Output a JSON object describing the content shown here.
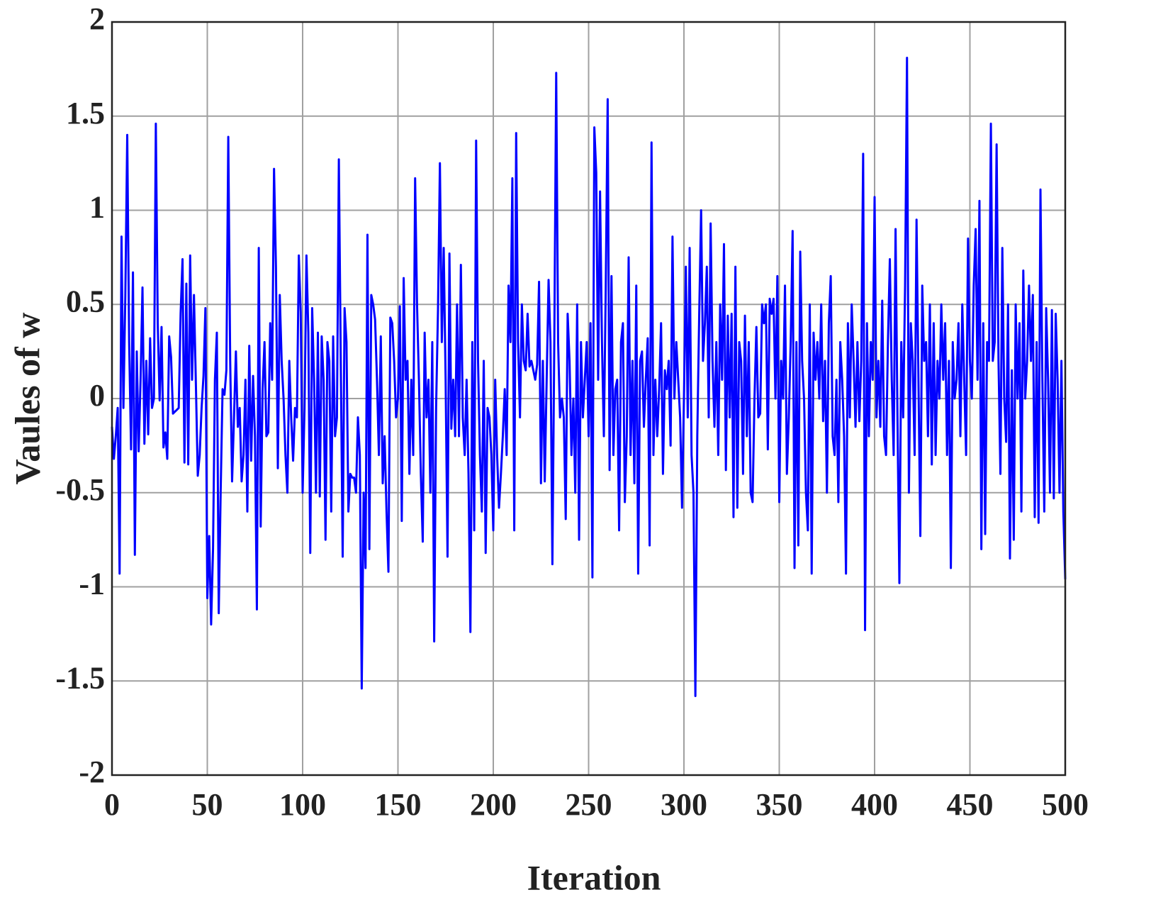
{
  "chart_data": {
    "type": "line",
    "xlabel": "Iteration",
    "ylabel": "Vaules of w",
    "xlim": [
      0,
      500
    ],
    "xticks": [
      0,
      50,
      100,
      150,
      200,
      250,
      300,
      350,
      400,
      450,
      500
    ],
    "ylim": [
      -2,
      2
    ],
    "yticks": [
      -2,
      -1.5,
      -1,
      -0.5,
      0,
      0.5,
      1,
      1.5,
      2
    ],
    "grid": true,
    "color": "#0000ff",
    "x": [
      0,
      1,
      2,
      3,
      4,
      5,
      6,
      7,
      8,
      9,
      10,
      11,
      12,
      13,
      14,
      15,
      16,
      17,
      18,
      19,
      20,
      21,
      22,
      23,
      24,
      25,
      26,
      27,
      28,
      29,
      30,
      31,
      32,
      33,
      34,
      35,
      36,
      37,
      38,
      39,
      40,
      41,
      42,
      43,
      44,
      45,
      46,
      47,
      48,
      49,
      50,
      51,
      52,
      53,
      54,
      55,
      56,
      57,
      58,
      59,
      60,
      61,
      62,
      63,
      64,
      65,
      66,
      67,
      68,
      69,
      70,
      71,
      72,
      73,
      74,
      75,
      76,
      77,
      78,
      79,
      80,
      81,
      82,
      83,
      84,
      85,
      86,
      87,
      88,
      89,
      90,
      91,
      92,
      93,
      94,
      95,
      96,
      97,
      98,
      99,
      100,
      101,
      102,
      103,
      104,
      105,
      106,
      107,
      108,
      109,
      110,
      111,
      112,
      113,
      114,
      115,
      116,
      117,
      118,
      119,
      120,
      121,
      122,
      123,
      124,
      125,
      126,
      127,
      128,
      129,
      130,
      131,
      132,
      133,
      134,
      135,
      136,
      137,
      138,
      139,
      140,
      141,
      142,
      143,
      144,
      145,
      146,
      147,
      148,
      149,
      150,
      151,
      152,
      153,
      154,
      155,
      156,
      157,
      158,
      159,
      160,
      161,
      162,
      163,
      164,
      165,
      166,
      167,
      168,
      169,
      170,
      171,
      172,
      173,
      174,
      175,
      176,
      177,
      178,
      179,
      180,
      181,
      182,
      183,
      184,
      185,
      186,
      187,
      188,
      189,
      190,
      191,
      192,
      193,
      194,
      195,
      196,
      197,
      198,
      199,
      200,
      201,
      202,
      203,
      204,
      205,
      206,
      207,
      208,
      209,
      210,
      211,
      212,
      213,
      214,
      215,
      216,
      217,
      218,
      219,
      220,
      221,
      222,
      223,
      224,
      225,
      226,
      227,
      228,
      229,
      230,
      231,
      232,
      233,
      234,
      235,
      236,
      237,
      238,
      239,
      240,
      241,
      242,
      243,
      244,
      245,
      246,
      247,
      248,
      249,
      250,
      251,
      252,
      253,
      254,
      255,
      256,
      257,
      258,
      259,
      260,
      261,
      262,
      263,
      264,
      265,
      266,
      267,
      268,
      269,
      270,
      271,
      272,
      273,
      274,
      275,
      276,
      277,
      278,
      279,
      280,
      281,
      282,
      283,
      284,
      285,
      286,
      287,
      288,
      289,
      290,
      291,
      292,
      293,
      294,
      295,
      296,
      297,
      298,
      299,
      300,
      301,
      302,
      303,
      304,
      305,
      306,
      307,
      308,
      309,
      310,
      311,
      312,
      313,
      314,
      315,
      316,
      317,
      318,
      319,
      320,
      321,
      322,
      323,
      324,
      325,
      326,
      327,
      328,
      329,
      330,
      331,
      332,
      333,
      334,
      335,
      336,
      337,
      338,
      339,
      340,
      341,
      342,
      343,
      344,
      345,
      346,
      347,
      348,
      349,
      350,
      351,
      352,
      353,
      354,
      355,
      356,
      357,
      358,
      359,
      360,
      361,
      362,
      363,
      364,
      365,
      366,
      367,
      368,
      369,
      370,
      371,
      372,
      373,
      374,
      375,
      376,
      377,
      378,
      379,
      380,
      381,
      382,
      383,
      384,
      385,
      386,
      387,
      388,
      389,
      390,
      391,
      392,
      393,
      394,
      395,
      396,
      397,
      398,
      399,
      400,
      401,
      402,
      403,
      404,
      405,
      406,
      407,
      408,
      409,
      410,
      411,
      412,
      413,
      414,
      415,
      416,
      417,
      418,
      419,
      420,
      421,
      422,
      423,
      424,
      425,
      426,
      427,
      428,
      429,
      430,
      431,
      432,
      433,
      434,
      435,
      436,
      437,
      438,
      439,
      440,
      441,
      442,
      443,
      444,
      445,
      446,
      447,
      448,
      449,
      450,
      451,
      452,
      453,
      454,
      455,
      456,
      457,
      458,
      459,
      460,
      461,
      462,
      463,
      464,
      465,
      466,
      467,
      468,
      469,
      470,
      471,
      472,
      473,
      474,
      475,
      476,
      477,
      478,
      479,
      480,
      481,
      482,
      483,
      484,
      485,
      486,
      487,
      488,
      489,
      490,
      491,
      492,
      493,
      494,
      495,
      496,
      497,
      498,
      499,
      500
    ],
    "values": [
      -0.15,
      -0.32,
      -0.2,
      -0.05,
      -0.93,
      0.86,
      -0.05,
      0.55,
      1.4,
      0.3,
      -0.27,
      0.67,
      -0.83,
      0.25,
      -0.28,
      0.1,
      0.59,
      -0.24,
      0.2,
      -0.19,
      0.32,
      -0.05,
      0.0,
      1.46,
      0.4,
      -0.01,
      0.38,
      -0.26,
      -0.18,
      -0.32,
      0.33,
      0.22,
      -0.08,
      -0.07,
      -0.06,
      -0.05,
      0.45,
      0.74,
      -0.34,
      0.61,
      -0.35,
      0.76,
      0.1,
      0.55,
      0.08,
      -0.41,
      -0.3,
      -0.05,
      0.12,
      0.48,
      -1.06,
      -0.73,
      -1.2,
      -0.8,
      0.1,
      0.35,
      -1.14,
      -0.5,
      0.05,
      0.02,
      0.15,
      1.39,
      0.2,
      -0.44,
      -0.1,
      0.25,
      -0.15,
      -0.05,
      -0.44,
      -0.3,
      0.1,
      -0.6,
      0.28,
      -0.33,
      0.12,
      -0.2,
      -1.12,
      0.8,
      -0.68,
      0.05,
      0.3,
      -0.2,
      -0.18,
      0.4,
      0.1,
      1.22,
      0.7,
      -0.37,
      0.55,
      0.2,
      0.0,
      -0.3,
      -0.5,
      0.2,
      -0.1,
      -0.33,
      -0.05,
      -0.1,
      0.76,
      0.46,
      -0.5,
      -0.05,
      0.76,
      0.35,
      -0.82,
      0.48,
      0.1,
      -0.5,
      0.35,
      -0.52,
      0.33,
      0.1,
      -0.75,
      0.3,
      0.2,
      -0.6,
      0.33,
      -0.2,
      -0.1,
      1.27,
      0.2,
      -0.84,
      0.48,
      0.3,
      -0.6,
      -0.4,
      -0.42,
      -0.42,
      -0.5,
      -0.1,
      -0.3,
      -1.54,
      -0.5,
      -0.9,
      0.87,
      -0.8,
      0.55,
      0.5,
      0.42,
      0.1,
      -0.3,
      0.33,
      -0.45,
      -0.2,
      -0.6,
      -0.92,
      0.43,
      0.4,
      0.2,
      -0.1,
      0.0,
      0.49,
      -0.65,
      0.64,
      0.1,
      0.2,
      -0.4,
      0.1,
      -0.3,
      1.17,
      0.5,
      0.1,
      -0.4,
      -0.76,
      0.35,
      -0.1,
      0.1,
      -0.5,
      0.3,
      -1.29,
      -0.05,
      0.47,
      1.25,
      0.3,
      0.8,
      0.1,
      -0.84,
      0.77,
      -0.16,
      0.1,
      -0.2,
      0.5,
      -0.2,
      0.71,
      -0.1,
      -0.3,
      0.1,
      -0.4,
      -1.24,
      0.3,
      -0.7,
      1.37,
      0.2,
      -0.3,
      -0.6,
      0.2,
      -0.82,
      -0.05,
      -0.1,
      -0.3,
      -0.7,
      0.1,
      -0.3,
      -0.58,
      -0.4,
      -0.2,
      0.05,
      -0.3,
      0.6,
      0.3,
      1.17,
      -0.7,
      1.41,
      0.3,
      -0.1,
      0.5,
      0.2,
      0.15,
      0.45,
      0.17,
      0.2,
      0.15,
      0.1,
      0.18,
      0.62,
      -0.45,
      0.2,
      -0.44,
      0.1,
      0.63,
      0.3,
      -0.88,
      0.3,
      1.73,
      0.3,
      -0.1,
      0.0,
      -0.1,
      -0.64,
      0.45,
      0.2,
      -0.3,
      0.0,
      -0.5,
      0.5,
      -0.75,
      0.3,
      -0.1,
      0.1,
      0.3,
      -0.2,
      0.4,
      -0.95,
      1.44,
      1.2,
      0.1,
      1.1,
      0.3,
      -0.2,
      0.6,
      1.59,
      -0.38,
      0.65,
      -0.3,
      0.05,
      0.1,
      -0.7,
      0.3,
      0.4,
      -0.55,
      -0.2,
      0.75,
      -0.3,
      0.2,
      -0.45,
      0.6,
      -0.93,
      0.2,
      0.25,
      -0.15,
      0.1,
      0.32,
      -0.78,
      1.36,
      -0.3,
      0.1,
      -0.2,
      0.05,
      0.4,
      -0.4,
      0.15,
      0.05,
      0.2,
      -0.25,
      0.86,
      0.0,
      0.3,
      0.1,
      -0.1,
      -0.58,
      0.0,
      0.7,
      -0.1,
      0.8,
      -0.3,
      -0.5,
      -1.58,
      -0.2,
      0.44,
      1.0,
      0.2,
      0.4,
      0.7,
      -0.1,
      0.93,
      0.2,
      -0.15,
      0.3,
      -0.3,
      0.5,
      0.1,
      0.82,
      -0.38,
      0.44,
      -0.1,
      0.45,
      -0.63,
      0.7,
      -0.58,
      0.3,
      0.2,
      -0.4,
      0.44,
      -0.2,
      0.3,
      -0.5,
      -0.55,
      0.0,
      0.38,
      -0.1,
      -0.08,
      0.5,
      0.4,
      0.5,
      -0.27,
      0.53,
      0.45,
      0.53,
      0.0,
      0.65,
      -0.55,
      0.2,
      0.0,
      0.6,
      -0.4,
      -0.1,
      0.3,
      0.89,
      -0.9,
      0.3,
      -0.78,
      0.78,
      0.2,
      0.0,
      -0.5,
      -0.7,
      0.5,
      -0.93,
      0.35,
      0.1,
      0.3,
      0.0,
      0.5,
      -0.12,
      0.2,
      -0.5,
      0.4,
      0.65,
      -0.2,
      -0.3,
      0.1,
      -0.55,
      0.3,
      0.1,
      -0.2,
      -0.93,
      0.4,
      -0.1,
      0.5,
      0.2,
      -0.15,
      0.3,
      -0.12,
      0.2,
      1.3,
      -1.23,
      0.4,
      -0.2,
      0.3,
      0.1,
      1.07,
      -0.1,
      0.2,
      -0.15,
      0.52,
      -0.2,
      -0.3,
      0.3,
      0.74,
      0.1,
      -0.3,
      0.9,
      -0.1,
      -0.98,
      0.3,
      -0.1,
      0.6,
      1.81,
      -0.5,
      0.4,
      0.2,
      -0.3,
      0.95,
      0.1,
      -0.73,
      0.6,
      0.2,
      0.3,
      -0.2,
      0.5,
      -0.35,
      0.4,
      -0.3,
      0.2,
      0.0,
      0.5,
      0.1,
      0.4,
      -0.3,
      0.2,
      -0.9,
      0.3,
      0.0,
      0.1,
      0.4,
      -0.2,
      0.5,
      0.1,
      -0.3,
      0.85,
      0.2,
      0.0,
      0.6,
      0.9,
      0.1,
      1.05,
      -0.8,
      0.4,
      -0.72,
      0.3,
      0.2,
      1.46,
      0.2,
      0.3,
      1.35,
      0.2,
      -0.4,
      0.8,
      0.0,
      -0.23,
      0.5,
      -0.85,
      0.15,
      -0.75,
      0.5,
      0.0,
      0.4,
      -0.6,
      0.68,
      0.0,
      0.2,
      0.6,
      0.2,
      0.55,
      -0.63,
      0.3,
      -0.66,
      1.11,
      0.1,
      -0.6,
      0.48,
      0.1,
      -0.5,
      0.47,
      -0.53,
      0.45,
      0.1,
      -0.5,
      0.2,
      -0.6,
      -0.96
    ]
  }
}
